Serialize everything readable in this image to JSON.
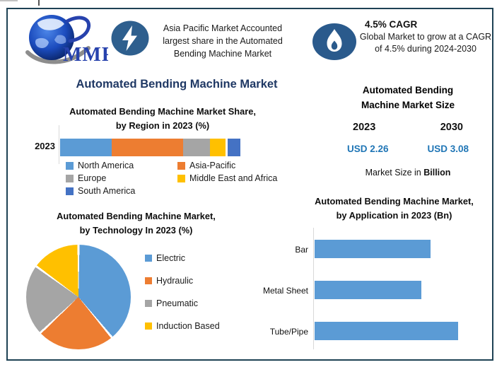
{
  "page": {
    "border_color": "#1e4254",
    "background": "#ffffff",
    "title_color": "#1f3864"
  },
  "header": {
    "logo": {
      "icon": "mmr-globe-logo",
      "text": "MMR"
    },
    "callout_left": {
      "icon": "lightning-icon",
      "icon_bg": "#2e5f8e",
      "text": "Asia Pacific Market Accounted largest share in the Automated Bending Machine Market"
    },
    "callout_right": {
      "icon": "flame-icon",
      "icon_bg": "#2a5a8c",
      "title": "4.5% CAGR",
      "text": "Global Market to grow at a CAGR of 4.5% during 2024-2030"
    }
  },
  "main_title": "Automated Bending Machine Market",
  "market_size_panel": {
    "title_line1": "Automated Bending",
    "title_line2": "Machine Market Size",
    "year_left": "2023",
    "year_right": "2030",
    "value_left": "USD 2.26",
    "value_right": "USD 3.08",
    "value_color": "#2076b6",
    "caption_prefix": "Market Size in ",
    "caption_bold": "Billion"
  },
  "chart_data": [
    {
      "id": "region_share",
      "type": "bar",
      "variant": "stacked-horizontal",
      "title_lines": [
        "Automated Bending Machine Market Share,",
        "by Region in 2023 (%)"
      ],
      "categories": [
        "2023"
      ],
      "series": [
        {
          "name": "North America",
          "color": "#5B9BD5",
          "values": [
            29
          ]
        },
        {
          "name": "Asia-Pacific",
          "color": "#ED7D31",
          "values": [
            40
          ]
        },
        {
          "name": "Europe",
          "color": "#A5A5A5",
          "values": [
            15
          ]
        },
        {
          "name": "Middle East and Africa",
          "color": "#FFC000",
          "values": [
            9
          ]
        },
        {
          "name": "South America",
          "color": "#4472C4",
          "values": [
            7
          ]
        }
      ],
      "unit": "%",
      "legend_position": "bottom"
    },
    {
      "id": "technology_share",
      "type": "pie",
      "title_lines": [
        "Automated Bending Machine Market,",
        "by Technology In 2023 (%)"
      ],
      "labels": [
        "Electric",
        "Hydraulic",
        "Pneumatic",
        "Induction Based"
      ],
      "values": [
        39,
        24,
        22,
        15
      ],
      "colors": [
        "#5B9BD5",
        "#ED7D31",
        "#A5A5A5",
        "#FFC000"
      ],
      "unit": "%",
      "legend_position": "right"
    },
    {
      "id": "application_size",
      "type": "bar",
      "variant": "horizontal",
      "title_lines": [
        "Automated Bending Machine Market,",
        "by Application in 2023 (Bn)"
      ],
      "categories": [
        "Bar",
        "Metal Sheet",
        "Tube/Pipe"
      ],
      "values": [
        0.73,
        0.67,
        0.9
      ],
      "bar_color": "#5B9BD5",
      "xlim": [
        0,
        1.0
      ],
      "unit": "Bn"
    }
  ]
}
